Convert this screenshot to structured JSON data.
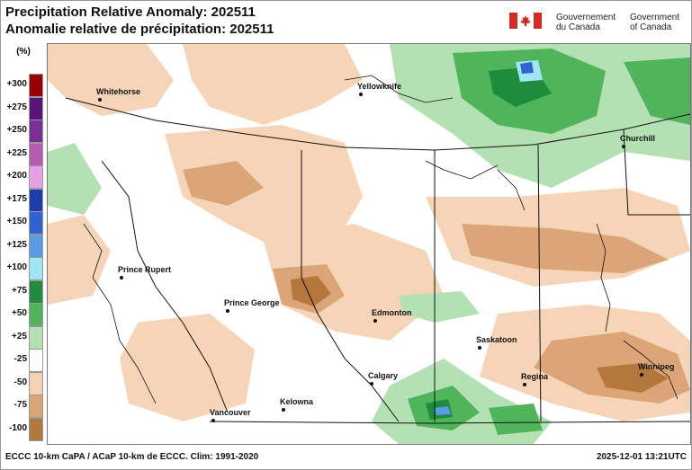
{
  "header": {
    "title_en": "Precipitation Relative Anomaly: 202511",
    "title_fr": "Anomalie relative de précipitation: 202511",
    "gov_fr_line1": "Gouvernement",
    "gov_fr_line2": "du Canada",
    "gov_en_line1": "Government",
    "gov_en_line2": "of Canada"
  },
  "legend": {
    "unit": "(%)",
    "entries": [
      {
        "label": "+300",
        "color": "#9b0000"
      },
      {
        "label": "+275",
        "color": "#5a1478"
      },
      {
        "label": "+250",
        "color": "#7d2d96"
      },
      {
        "label": "+225",
        "color": "#b45ab4"
      },
      {
        "label": "+200",
        "color": "#e6a0e6"
      },
      {
        "label": "+175",
        "color": "#1e3caa"
      },
      {
        "label": "+150",
        "color": "#2d64d2"
      },
      {
        "label": "+125",
        "color": "#5a9be6"
      },
      {
        "label": "+100",
        "color": "#a0e6f5"
      },
      {
        "label": "+75",
        "color": "#1e8c3c"
      },
      {
        "label": "+50",
        "color": "#50b45a"
      },
      {
        "label": "+25",
        "color": "#b4e1b4"
      },
      {
        "label": "-25",
        "color": "#ffffff"
      },
      {
        "label": "-50",
        "color": "#f5d2b4"
      },
      {
        "label": "-75",
        "color": "#dca578"
      },
      {
        "label": "-100",
        "color": "#b4783c"
      }
    ]
  },
  "cities": [
    {
      "name": "Whitehorse"
    },
    {
      "name": "Yellowknife"
    },
    {
      "name": "Churchill"
    },
    {
      "name": "Prince Rupert"
    },
    {
      "name": "Prince George"
    },
    {
      "name": "Edmonton"
    },
    {
      "name": "Saskatoon"
    },
    {
      "name": "Calgary"
    },
    {
      "name": "Regina"
    },
    {
      "name": "Winnipeg"
    },
    {
      "name": "Vancouver"
    },
    {
      "name": "Kelowna"
    }
  ],
  "footer": {
    "source": "ECCC 10-km CaPA / ACaP 10-km de ECCC. Clim: 1991-2020",
    "timestamp": "2025-12-01 13:21UTC"
  }
}
